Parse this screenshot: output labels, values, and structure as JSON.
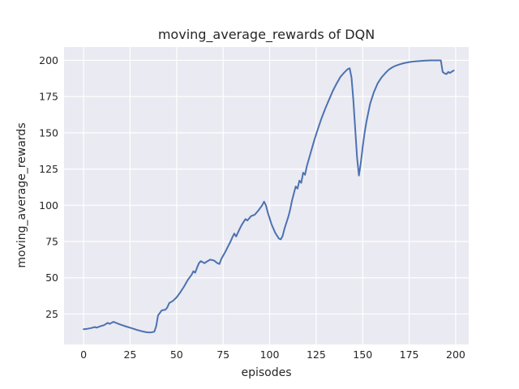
{
  "figure": {
    "kind": "matplotlib-seaborn-darkgrid-line-plot"
  },
  "chart_data": {
    "type": "line",
    "title": "moving_average_rewards of DQN",
    "xlabel": "episodes",
    "ylabel": "moving_average_rewards",
    "xticks": [
      0,
      25,
      50,
      75,
      100,
      125,
      150,
      175,
      200
    ],
    "yticks": [
      25,
      50,
      75,
      100,
      125,
      150,
      175,
      200
    ],
    "xlim": [
      -10.5,
      207
    ],
    "ylim": [
      4,
      209.2
    ],
    "grid": true,
    "legend": false,
    "colors": {
      "line": "#4c72b0",
      "axes_background": "#eaeaf2",
      "grid": "#ffffff",
      "text": "#262626",
      "figure_background": "#ffffff"
    },
    "series": [
      {
        "name": "moving_average_rewards",
        "x": [
          0,
          2,
          4,
          6,
          7,
          9,
          11,
          13,
          14,
          16,
          18,
          20,
          23,
          26,
          29,
          32,
          34,
          36,
          38,
          39,
          40,
          42,
          44,
          45,
          46,
          48,
          50,
          52,
          54,
          56,
          58,
          59,
          60,
          61,
          62,
          63,
          65,
          66,
          68,
          70,
          72,
          73,
          74,
          76,
          78,
          79,
          80,
          81,
          82,
          84,
          85,
          87,
          88,
          90,
          92,
          94,
          96,
          97,
          98,
          99,
          101,
          103,
          105,
          106,
          107,
          108,
          110,
          111,
          112,
          113,
          114,
          115,
          116,
          117,
          118,
          119,
          120,
          122,
          124,
          126,
          128,
          130,
          132,
          134,
          136,
          138,
          140,
          142,
          143,
          144,
          145,
          146,
          147,
          148,
          149,
          150,
          151,
          152,
          154,
          156,
          158,
          160,
          162,
          164,
          166,
          168,
          170,
          172,
          175,
          178,
          181,
          184,
          187,
          190,
          192,
          193,
          194,
          195,
          196,
          197,
          198,
          199
        ],
        "y": [
          14.5,
          14.8,
          15.3,
          16.0,
          15.6,
          16.5,
          17.3,
          18.9,
          18.2,
          19.6,
          18.6,
          17.6,
          16.3,
          15.1,
          13.9,
          12.9,
          12.4,
          12.2,
          12.8,
          16.5,
          24.0,
          27.5,
          28.0,
          29.5,
          32.5,
          34.0,
          36.5,
          40.0,
          44.0,
          48.5,
          52.0,
          54.5,
          53.5,
          57.0,
          60.0,
          61.5,
          60.0,
          61.0,
          62.5,
          62.0,
          60.0,
          59.5,
          63.0,
          67.5,
          72.5,
          75.0,
          78.0,
          80.5,
          78.5,
          84.0,
          86.5,
          90.5,
          89.5,
          92.5,
          93.5,
          96.5,
          100.0,
          102.5,
          100.0,
          95.0,
          87.0,
          81.0,
          77.0,
          76.5,
          79.0,
          84.0,
          92.0,
          97.0,
          103.0,
          108.0,
          113.0,
          111.5,
          117.0,
          115.5,
          122.5,
          121.0,
          127.0,
          136.0,
          145.0,
          153.0,
          160.5,
          167.0,
          173.0,
          179.0,
          184.0,
          188.5,
          191.5,
          194.0,
          194.5,
          188.0,
          172.0,
          152.0,
          133.0,
          120.5,
          129.0,
          140.0,
          149.5,
          157.5,
          170.0,
          178.0,
          184.0,
          188.0,
          191.0,
          193.5,
          195.2,
          196.4,
          197.3,
          198.0,
          198.8,
          199.3,
          199.6,
          199.8,
          200.0,
          200.0,
          200.0,
          192.0,
          191.0,
          190.5,
          192.0,
          191.3,
          192.3,
          193.0
        ]
      }
    ]
  }
}
